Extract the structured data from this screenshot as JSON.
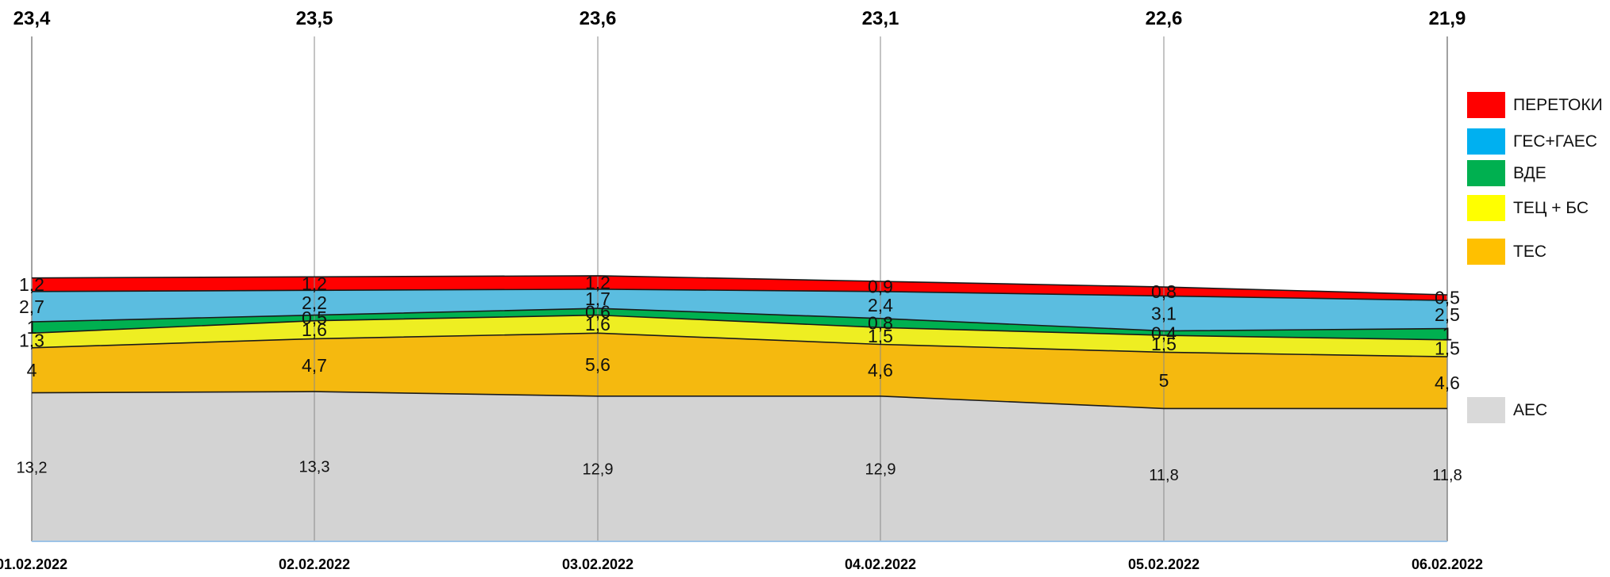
{
  "chart_data": {
    "type": "area",
    "stacked": true,
    "categories": [
      "01.02.2022",
      "02.02.2022",
      "03.02.2022",
      "04.02.2022",
      "05.02.2022",
      "06.02.2022"
    ],
    "totals": [
      "23,4",
      "23,5",
      "23,6",
      "23,1",
      "22,6",
      "21,9"
    ],
    "series": [
      {
        "key": "aes",
        "name": "АЕС",
        "color": "#d3d3d3",
        "values": [
          13.2,
          13.3,
          12.9,
          12.9,
          11.8,
          11.8
        ],
        "labels": [
          "13,2",
          "13,3",
          "12,9",
          "12,9",
          "11,8",
          "11,8"
        ]
      },
      {
        "key": "tes",
        "name": "ТЕС",
        "color": "#f5b90f",
        "values": [
          4,
          4.7,
          5.6,
          4.6,
          5,
          4.6
        ],
        "labels": [
          "4",
          "4,7",
          "5,6",
          "4,6",
          "5",
          "4,6"
        ]
      },
      {
        "key": "tec",
        "name": "ТЕЦ + БС",
        "color": "#eeee22",
        "values": [
          1.3,
          1.6,
          1.6,
          1.5,
          1.5,
          1.5
        ],
        "labels": [
          "1,3",
          "1,6",
          "1,6",
          "1,5",
          "1,5",
          "1,5"
        ]
      },
      {
        "key": "vde",
        "name": "ВДЕ",
        "color": "#00b050",
        "values": [
          1,
          0.5,
          0.6,
          0.8,
          0.4,
          1
        ],
        "labels": [
          "1",
          "0,5",
          "0,6",
          "0,8",
          "0,4",
          "1"
        ]
      },
      {
        "key": "ges",
        "name": "ГЕС+ГАЕС",
        "color": "#5bbde0",
        "values": [
          2.7,
          2.2,
          1.7,
          2.4,
          3.1,
          2.5
        ],
        "labels": [
          "2,7",
          "2,2",
          "1,7",
          "2,4",
          "3,1",
          "2,5"
        ]
      },
      {
        "key": "peretoky",
        "name": "ПЕРЕТОКИ",
        "color": "#ff0000",
        "values": [
          1.2,
          1.2,
          1.2,
          0.9,
          0.8,
          0.5
        ],
        "labels": [
          "1,2",
          "1,2",
          "1,2",
          "0,9",
          "0,8",
          "0,5"
        ]
      }
    ],
    "legend": [
      {
        "name": "ПЕРЕТОКИ",
        "color": "#ff0000"
      },
      {
        "name": "ГЕС+ГАЕС",
        "color": "#00b0f0"
      },
      {
        "name": "ВДЕ",
        "color": "#00b050"
      },
      {
        "name": "ТЕЦ + БС",
        "color": "#ffff00"
      },
      {
        "name": "ТЕС",
        "color": "#ffc000"
      },
      {
        "name": "АЕС",
        "color": "#d9d9d9"
      }
    ],
    "legend_position": "right",
    "ylim": [
      0,
      23.6
    ],
    "grid": "vertical"
  }
}
